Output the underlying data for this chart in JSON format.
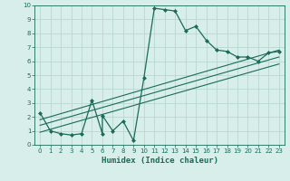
{
  "xlabel": "Humidex (Indice chaleur)",
  "ylabel": "",
  "bg_color": "#d8eeea",
  "grid_color": "#b8d8d0",
  "line_color": "#1a6b5a",
  "xlim": [
    -0.5,
    23.5
  ],
  "ylim": [
    0,
    10
  ],
  "xticks": [
    0,
    1,
    2,
    3,
    4,
    5,
    6,
    7,
    8,
    9,
    10,
    11,
    12,
    13,
    14,
    15,
    16,
    17,
    18,
    19,
    20,
    21,
    22,
    23
  ],
  "yticks": [
    0,
    1,
    2,
    3,
    4,
    5,
    6,
    7,
    8,
    9,
    10
  ],
  "series1_x": [
    0,
    1,
    2,
    3,
    4,
    5,
    6,
    6,
    7,
    8,
    9,
    10,
    11,
    12,
    13,
    14,
    15,
    16,
    17,
    18,
    19,
    20,
    21,
    22,
    23
  ],
  "series1_y": [
    2.3,
    1.0,
    0.8,
    0.7,
    0.8,
    3.2,
    0.8,
    2.1,
    1.0,
    1.7,
    0.3,
    4.8,
    9.8,
    9.7,
    9.6,
    8.2,
    8.5,
    7.5,
    6.8,
    6.7,
    6.3,
    6.3,
    6.0,
    6.6,
    6.7
  ],
  "line1_x": [
    0,
    23
  ],
  "line1_y": [
    1.8,
    6.8
  ],
  "line2_x": [
    0,
    23
  ],
  "line2_y": [
    1.4,
    6.3
  ],
  "line3_x": [
    0,
    23
  ],
  "line3_y": [
    0.9,
    5.8
  ]
}
